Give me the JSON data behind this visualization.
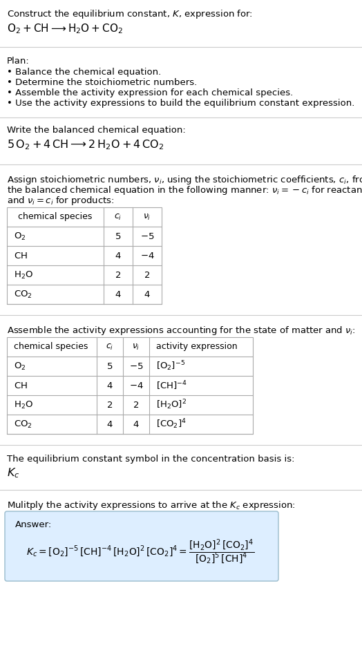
{
  "bg_color": "#ffffff",
  "text_color": "#000000",
  "title_line1": "Construct the equilibrium constant, $K$, expression for:",
  "title_line2": "$\\mathrm{O_2 + CH \\longrightarrow H_2O + CO_2}$",
  "plan_header": "Plan:",
  "plan_items": [
    "• Balance the chemical equation.",
    "• Determine the stoichiometric numbers.",
    "• Assemble the activity expression for each chemical species.",
    "• Use the activity expressions to build the equilibrium constant expression."
  ],
  "balanced_header": "Write the balanced chemical equation:",
  "balanced_eq": "$\\mathrm{5\\,O_2 + 4\\,CH \\longrightarrow 2\\,H_2O + 4\\,CO_2}$",
  "stoich_line1": "Assign stoichiometric numbers, $\\nu_i$, using the stoichiometric coefficients, $c_i$, from",
  "stoich_line2": "the balanced chemical equation in the following manner: $\\nu_i = -c_i$ for reactants",
  "stoich_line3": "and $\\nu_i = c_i$ for products:",
  "table1_cols": [
    "chemical species",
    "$c_i$",
    "$\\nu_i$"
  ],
  "table1_rows": [
    [
      "$\\mathrm{O_2}$",
      "5",
      "$-5$"
    ],
    [
      "$\\mathrm{CH}$",
      "4",
      "$-4$"
    ],
    [
      "$\\mathrm{H_2O}$",
      "2",
      "2"
    ],
    [
      "$\\mathrm{CO_2}$",
      "4",
      "4"
    ]
  ],
  "activity_header": "Assemble the activity expressions accounting for the state of matter and $\\nu_i$:",
  "table2_cols": [
    "chemical species",
    "$c_i$",
    "$\\nu_i$",
    "activity expression"
  ],
  "table2_rows": [
    [
      "$\\mathrm{O_2}$",
      "5",
      "$-5$",
      "$[\\mathrm{O_2}]^{-5}$"
    ],
    [
      "$\\mathrm{CH}$",
      "4",
      "$-4$",
      "$[\\mathrm{CH}]^{-4}$"
    ],
    [
      "$\\mathrm{H_2O}$",
      "2",
      "2",
      "$[\\mathrm{H_2O}]^{2}$"
    ],
    [
      "$\\mathrm{CO_2}$",
      "4",
      "4",
      "$[\\mathrm{CO_2}]^{4}$"
    ]
  ],
  "kc_symbol_header": "The equilibrium constant symbol in the concentration basis is:",
  "kc_symbol": "$K_c$",
  "multiply_header": "Mulitply the activity expressions to arrive at the $K_c$ expression:",
  "answer_label": "Answer:",
  "kc_expr": "$K_c = [\\mathrm{O_2}]^{-5}\\,[\\mathrm{CH}]^{-4}\\,[\\mathrm{H_2O}]^{2}\\,[\\mathrm{CO_2}]^{4} = \\dfrac{[\\mathrm{H_2O}]^{2}\\,[\\mathrm{CO_2}]^{4}}{[\\mathrm{O_2}]^{5}\\,[\\mathrm{CH}]^{4}}$",
  "table_border_color": "#aaaaaa",
  "answer_box_color": "#ddeeff",
  "answer_box_border": "#99bbcc",
  "sep_line_color": "#cccccc",
  "font_size": 9.5,
  "font_size_small": 9.0
}
